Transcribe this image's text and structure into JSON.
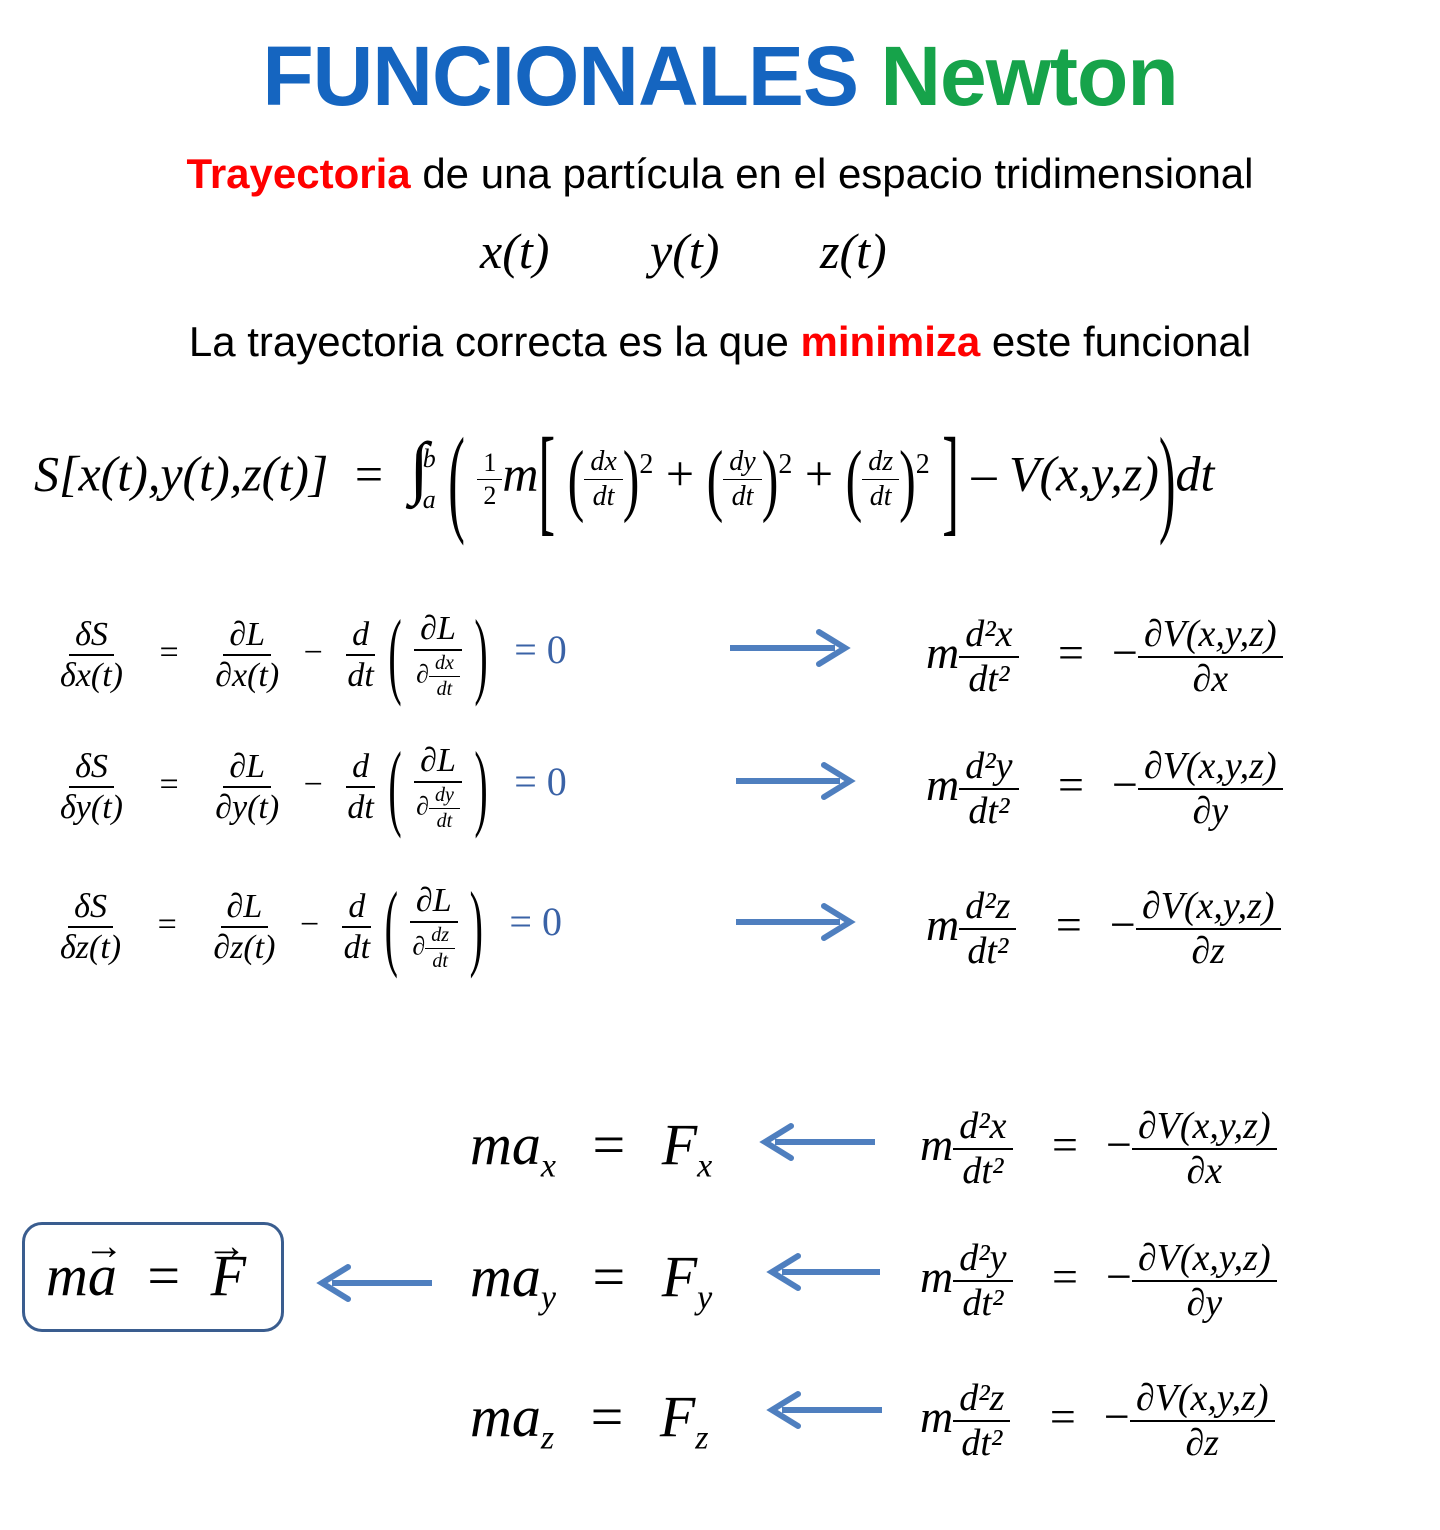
{
  "title": {
    "part1": "FUNCIONALES",
    "part2": "Newton",
    "color1": "#1565c0",
    "color2": "#16a34a"
  },
  "subtitle1": {
    "highlight": "Trayectoria",
    "rest": "de una partícula en el espacio tridimensional",
    "highlight_color": "#ff0000"
  },
  "coords": [
    "x(t)",
    "y(t)",
    "z(t)"
  ],
  "subtitle2": {
    "before": "La trayectoria correcta es la que",
    "highlight": "minimiza",
    "after": "este funcional",
    "highlight_color": "#ff0000"
  },
  "functional": {
    "lhs": "S[x(t),y(t),z(t)]",
    "eq": "=",
    "int_upper": "b",
    "int_lower": "a",
    "half_num": "1",
    "half_den": "2",
    "m": "m",
    "dx": "dx",
    "dy": "dy",
    "dz": "dz",
    "dt": "dt",
    "sq": "2",
    "potential": "V(x,y,z)",
    "tail": "dt"
  },
  "euler_lagrange": [
    {
      "lhs_num": "δS",
      "lhs_den": "δx(t)",
      "t1_num": "∂L",
      "t1_den": "∂x(t)",
      "d": "d",
      "dt": "dt",
      "inner_num": "∂L",
      "inner_den_d": "∂",
      "inner_den_num": "dx",
      "inner_den_den": "dt",
      "zero": "= 0",
      "m": "m",
      "acc_num": "d²x",
      "acc_den": "dt²",
      "eq": "=",
      "minus": "−",
      "force_num": "∂V(x,y,z)",
      "force_den": "∂x"
    },
    {
      "lhs_num": "δS",
      "lhs_den": "δy(t)",
      "t1_num": "∂L",
      "t1_den": "∂y(t)",
      "d": "d",
      "dt": "dt",
      "inner_num": "∂L",
      "inner_den_d": "∂",
      "inner_den_num": "dy",
      "inner_den_den": "dt",
      "zero": "= 0",
      "m": "m",
      "acc_num": "d²y",
      "acc_den": "dt²",
      "eq": "=",
      "minus": "−",
      "force_num": "∂V(x,y,z)",
      "force_den": "∂y"
    },
    {
      "lhs_num": "δS",
      "lhs_den": "δz(t)",
      "t1_num": "∂L",
      "t1_den": "∂z(t)",
      "d": "d",
      "dt": "dt",
      "inner_num": "∂L",
      "inner_den_d": "∂",
      "inner_den_num": "dz",
      "inner_den_den": "dt",
      "zero": "= 0",
      "m": "m",
      "acc_num": "d²z",
      "acc_den": "dt²",
      "eq": "=",
      "minus": "−",
      "force_num": "∂V(x,y,z)",
      "force_den": "∂z"
    }
  ],
  "newton": [
    {
      "ma": "ma",
      "sub": "x",
      "eq": "=",
      "F": "F",
      "m": "m",
      "acc_num": "d²x",
      "acc_den": "dt²",
      "minus": "−",
      "force_num": "∂V(x,y,z)",
      "force_den": "∂x"
    },
    {
      "ma": "ma",
      "sub": "y",
      "eq": "=",
      "F": "F",
      "m": "m",
      "acc_num": "d²y",
      "acc_den": "dt²",
      "minus": "−",
      "force_num": "∂V(x,y,z)",
      "force_den": "∂y"
    },
    {
      "ma": "ma",
      "sub": "z",
      "eq": "=",
      "F": "F",
      "m": "m",
      "acc_num": "d²z",
      "acc_den": "dt²",
      "minus": "−",
      "force_num": "∂V(x,y,z)",
      "force_den": "∂z"
    }
  ],
  "vector_law": {
    "m": "m",
    "a": "a",
    "eq": "=",
    "F": "F"
  },
  "arrow_color": "#4f7fbf"
}
